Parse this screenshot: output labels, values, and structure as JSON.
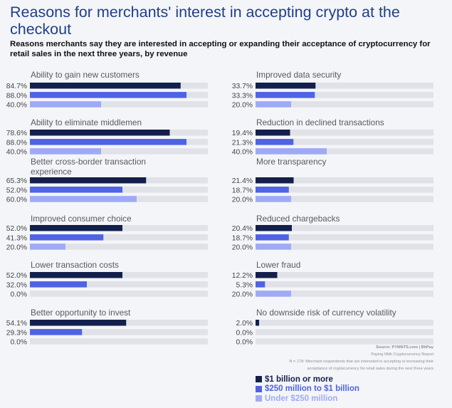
{
  "header": {
    "title": "Reasons for merchants' interest in accepting crypto at the checkout",
    "subtitle": "Reasons merchants say they are interested in accepting or expanding their acceptance of cryptocurrency for retail sales in the next three years, by revenue"
  },
  "colors": {
    "large": "#13204b",
    "mid": "#4f63e4",
    "small": "#9faaf7",
    "track": "#e0e2e8",
    "title": "#1e3f8a"
  },
  "chart_data": {
    "type": "bar",
    "orientation": "horizontal",
    "xlim": [
      0,
      100
    ],
    "legend_position": "bottom-right",
    "series": [
      {
        "name": "$1 billion or more",
        "color": "#13204b"
      },
      {
        "name": "$250 million to $1 billion",
        "color": "#4f63e4"
      },
      {
        "name": "Under $250 million",
        "color": "#9faaf7"
      }
    ],
    "categories": [
      {
        "label": [
          "Ability to gain new customers"
        ],
        "values": [
          84.7,
          88.0,
          40.0
        ],
        "labels": [
          "84.7%",
          "88.0%",
          "40.0%"
        ]
      },
      {
        "label": [
          "Ability to eliminate middlemen"
        ],
        "values": [
          78.6,
          88.0,
          40.0
        ],
        "labels": [
          "78.6%",
          "88.0%",
          "40.0%"
        ]
      },
      {
        "label": [
          "Better cross-border transaction",
          "experience"
        ],
        "values": [
          65.3,
          52.0,
          60.0
        ],
        "labels": [
          "65.3%",
          "52.0%",
          "60.0%"
        ]
      },
      {
        "label": [
          "Improved consumer choice"
        ],
        "values": [
          52.0,
          41.3,
          20.0
        ],
        "labels": [
          "52.0%",
          "41.3%",
          "20.0%"
        ]
      },
      {
        "label": [
          "Lower transaction costs"
        ],
        "values": [
          52.0,
          32.0,
          0.0
        ],
        "labels": [
          "52.0%",
          "32.0%",
          "0.0%"
        ]
      },
      {
        "label": [
          "Better opportunity to invest"
        ],
        "values": [
          54.1,
          29.3,
          0.0
        ],
        "labels": [
          "54.1%",
          "29.3%",
          "0.0%"
        ]
      },
      {
        "label": [
          "Improved data security"
        ],
        "values": [
          33.7,
          33.3,
          20.0
        ],
        "labels": [
          "33.7%",
          "33.3%",
          "20.0%"
        ]
      },
      {
        "label": [
          "Reduction in declined transactions"
        ],
        "values": [
          19.4,
          21.3,
          40.0
        ],
        "labels": [
          "19.4%",
          "21.3%",
          "40.0%"
        ]
      },
      {
        "label": [
          "More transparency"
        ],
        "values": [
          21.4,
          18.7,
          20.0
        ],
        "labels": [
          "21.4%",
          "18.7%",
          "20.0%"
        ]
      },
      {
        "label": [
          "Reduced chargebacks"
        ],
        "values": [
          20.4,
          18.7,
          20.0
        ],
        "labels": [
          "20.4%",
          "18.7%",
          "20.0%"
        ]
      },
      {
        "label": [
          "Lower fraud"
        ],
        "values": [
          12.2,
          5.3,
          20.0
        ],
        "labels": [
          "12.2%",
          "5.3%",
          "20.0%"
        ]
      },
      {
        "label": [
          "No downside risk of currency volatility"
        ],
        "values": [
          2.0,
          0.0,
          0.0
        ],
        "labels": [
          "2.0%",
          "0.0%",
          "0.0%"
        ]
      }
    ]
  },
  "source": {
    "line1": "Source: PYMNTS.com | BitPay",
    "line2": "Paying With Cryptocurrency Report",
    "line3": "N = 178: Merchant respondents that are interested in accepting or increasing their",
    "line4": "acceptance of cryptocurrency for retail sales during the next three years"
  }
}
